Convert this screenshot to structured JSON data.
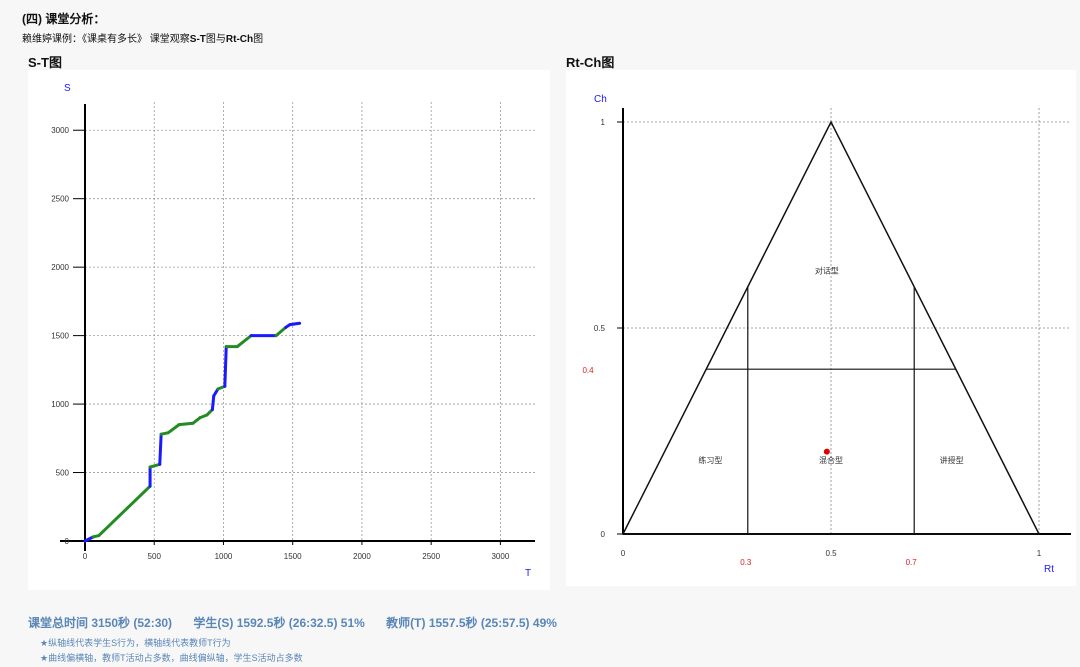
{
  "header": {
    "title": "(四) 课堂分析：",
    "subtitle_prefix": "赖维婷课例：《课桌有多长》 课堂观察",
    "subtitle_bold1": "S-T",
    "subtitle_mid": "图与",
    "subtitle_bold2": "Rt-Ch",
    "subtitle_suffix": "图"
  },
  "st_panel": {
    "title": "S-T图"
  },
  "rtch_panel": {
    "title": "Rt-Ch图"
  },
  "summary": {
    "total": "课堂总时间 3150秒 (52:30)",
    "student": "学生(S) 1592.5秒 (26:32.5) 51%",
    "teacher": "教师(T) 1557.5秒 (25:57.5) 49%"
  },
  "notes": [
    "★纵轴线代表学生S行为，横轴线代表教师T行为",
    "★曲线偏横轴，教师T活动占多数，曲线偏纵轴，学生S活动占多数"
  ],
  "colors": {
    "teacher_segment": "#228b22",
    "student_segment": "#1a1aff",
    "axis_label": "#1a1aff",
    "red_label": "#e02020",
    "point": "#e00000"
  },
  "chart_data": [
    {
      "type": "line",
      "title": "S-T图",
      "xlabel": "T",
      "ylabel": "S",
      "xlim": [
        0,
        3250
      ],
      "ylim": [
        0,
        3250
      ],
      "xticks": [
        0,
        500,
        1000,
        1500,
        2000,
        2500,
        3000
      ],
      "yticks": [
        0,
        500,
        1000,
        1500,
        2000,
        2500,
        3000
      ],
      "grid": true,
      "series": [
        {
          "points": [
            [
              0,
              0
            ],
            [
              60,
              30
            ],
            [
              100,
              40
            ],
            [
              470,
              400
            ],
            [
              470,
              540
            ],
            [
              540,
              560
            ],
            [
              550,
              780
            ],
            [
              600,
              790
            ],
            [
              680,
              850
            ],
            [
              780,
              860
            ],
            [
              830,
              900
            ],
            [
              880,
              920
            ],
            [
              920,
              960
            ],
            [
              930,
              1060
            ],
            [
              960,
              1110
            ],
            [
              1010,
              1130
            ],
            [
              1020,
              1420
            ],
            [
              1100,
              1420
            ],
            [
              1200,
              1500
            ],
            [
              1380,
              1500
            ],
            [
              1450,
              1560
            ],
            [
              1480,
              1580
            ],
            [
              1550,
              1590
            ]
          ],
          "segment_types": [
            "S",
            "T",
            "T",
            "S",
            "T",
            "S",
            "T",
            "T",
            "T",
            "T",
            "T",
            "T",
            "S",
            "S",
            "T",
            "S",
            "T",
            "T",
            "S",
            "T",
            "S",
            "S"
          ]
        }
      ]
    },
    {
      "type": "scatter",
      "title": "Rt-Ch图",
      "xlabel": "Rt",
      "ylabel": "Ch",
      "xlim": [
        0,
        1
      ],
      "ylim": [
        0,
        1
      ],
      "xticks": [
        0,
        0.5,
        1
      ],
      "yticks": [
        0,
        0.5,
        1
      ],
      "reference_labels_x": [
        "0.3",
        "0.7"
      ],
      "reference_labels_y": [
        "0.4"
      ],
      "regions": [
        "对话型",
        "练习型",
        "混合型",
        "讲授型"
      ],
      "point": {
        "Rt": 0.49,
        "Ch": 0.2
      }
    }
  ]
}
